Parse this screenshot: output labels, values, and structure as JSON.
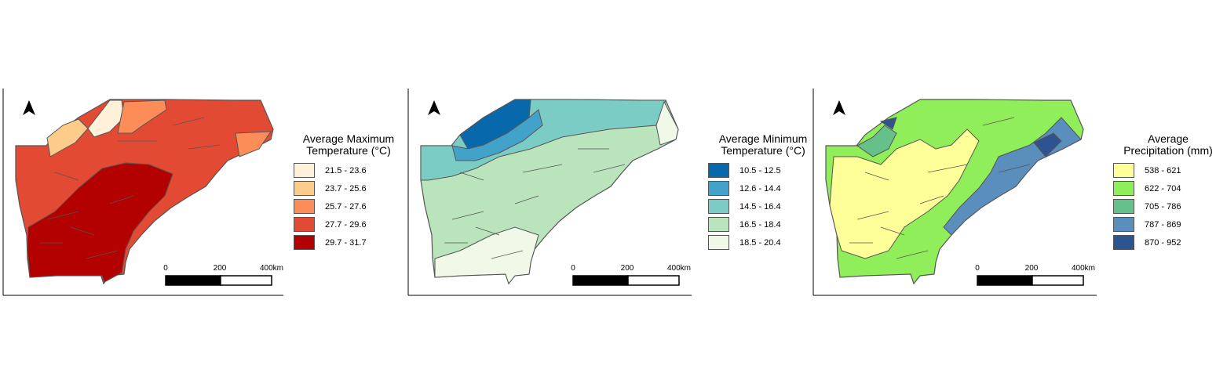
{
  "scale_bar": {
    "ticks": [
      "0",
      "200",
      "400km"
    ]
  },
  "panels": [
    {
      "legend_title_1": "Average Maximum",
      "legend_title_2": "Temperature (°C)",
      "classes": [
        {
          "label": "21.5 - 23.6",
          "color": "#fef0d9"
        },
        {
          "label": "23.7 - 25.6",
          "color": "#fdcc8a"
        },
        {
          "label": "25.7 - 27.6",
          "color": "#fc8d59"
        },
        {
          "label": "27.7 - 29.6",
          "color": "#e34a33"
        },
        {
          "label": "29.7 - 31.7",
          "color": "#b30000"
        }
      ]
    },
    {
      "legend_title_1": "Average Minimum",
      "legend_title_2": "Temperature (°C)",
      "classes": [
        {
          "label": "10.5 - 12.5",
          "color": "#0868ac"
        },
        {
          "label": "12.6 - 14.4",
          "color": "#43a2ca"
        },
        {
          "label": "14.5 - 16.4",
          "color": "#7bccc4"
        },
        {
          "label": "16.5 - 18.4",
          "color": "#bae4bc"
        },
        {
          "label": "18.5 - 20.4",
          "color": "#f0f9e8"
        }
      ]
    },
    {
      "legend_title_1": "Average",
      "legend_title_2": "Precipitation (mm)",
      "classes": [
        {
          "label": "538 - 621",
          "color": "#ffff99"
        },
        {
          "label": "622 - 704",
          "color": "#90ee5a"
        },
        {
          "label": "705 - 786",
          "color": "#66c08a"
        },
        {
          "label": "787 - 869",
          "color": "#5a8fbd"
        },
        {
          "label": "870 - 952",
          "color": "#2e5391"
        }
      ]
    }
  ]
}
